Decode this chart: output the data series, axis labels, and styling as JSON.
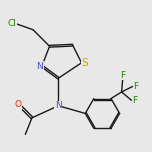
{
  "bg_color": "#e8e8e8",
  "line_color": "#1a1a1a",
  "atom_colors": {
    "N": "#4444ff",
    "O": "#ff2200",
    "S": "#bbaa00",
    "Cl": "#228800",
    "F": "#228800",
    "C": "#1a1a1a"
  },
  "line_width": 1.0,
  "font_size": 6.5,
  "fig_size": [
    1.52,
    1.52
  ],
  "dpi": 100
}
